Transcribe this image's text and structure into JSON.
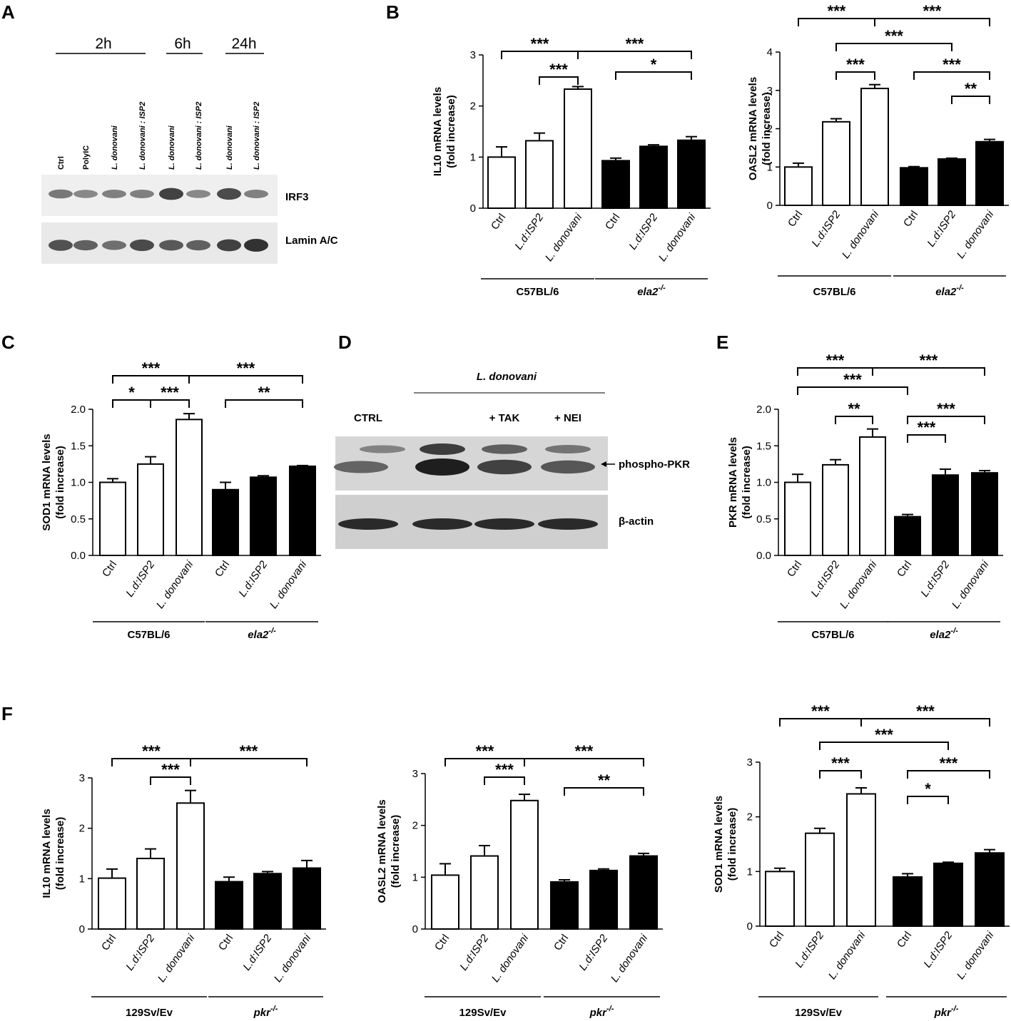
{
  "figure": {
    "panel_labels": [
      "A",
      "B",
      "C",
      "D",
      "E",
      "F"
    ]
  },
  "blot_a": {
    "time_groups": [
      "2h",
      "6h",
      "24h"
    ],
    "lanes": [
      "Ctrl",
      "PolyIC",
      "L. donovani",
      "L. donovani : ISP2",
      "L. donovani",
      "L. donovani : ISP2",
      "L. donovani",
      "L. donovani : ISP2"
    ],
    "rows": [
      "IRF3",
      "Lamin A/C"
    ],
    "band_intensity": {
      "IRF3": [
        0.55,
        0.45,
        0.5,
        0.5,
        0.9,
        0.45,
        0.85,
        0.5
      ],
      "Lamin A/C": [
        0.8,
        0.7,
        0.6,
        0.85,
        0.75,
        0.7,
        0.9,
        1.0
      ]
    }
  },
  "blot_d": {
    "header": "L. donovani",
    "lanes": [
      "CTRL",
      "",
      "+ TAK",
      "+ NEI"
    ],
    "rows": [
      "phospho-PKR",
      "β-actin"
    ],
    "band_intensity": {
      "phospho-PKR": [
        0.5,
        1.0,
        0.75,
        0.6
      ],
      "β-actin": [
        0.9,
        0.9,
        0.9,
        0.9
      ]
    }
  },
  "chart_data": [
    {
      "id": "B1",
      "panel": "B",
      "type": "bar",
      "categories": [
        "Ctrl",
        "L.d:ISP2",
        "L. donovani",
        "Ctrl",
        "L.d:ISP2",
        "L. donovani"
      ],
      "groups": [
        {
          "label": "C57BL/6",
          "from": 0,
          "to": 2
        },
        {
          "label": "ela2-/-",
          "from": 3,
          "to": 5
        }
      ],
      "values": [
        1.0,
        1.32,
        2.33,
        0.93,
        1.21,
        1.33
      ],
      "errors": [
        0.2,
        0.15,
        0.05,
        0.05,
        0.03,
        0.07
      ],
      "fills": [
        "white",
        "white",
        "white",
        "black",
        "black",
        "black"
      ],
      "ylabel": "IL10 mRNA levels (fold increase)",
      "ylim": [
        0,
        3
      ],
      "yticks": [
        "0",
        "1",
        "2",
        "3"
      ],
      "significance": [
        {
          "from": 0,
          "to": 2,
          "label": "***"
        },
        {
          "from": 1,
          "to": 2,
          "label": "***"
        },
        {
          "from": 2,
          "to": 5,
          "label": "***"
        },
        {
          "from": 3,
          "to": 5,
          "label": "*"
        }
      ]
    },
    {
      "id": "B2",
      "panel": "B",
      "type": "bar",
      "categories": [
        "Ctrl",
        "L.d:ISP2",
        "L. donovani",
        "Ctrl",
        "L.d:ISP2",
        "L. donovani"
      ],
      "groups": [
        {
          "label": "C57BL/6",
          "from": 0,
          "to": 2
        },
        {
          "label": "ela2-/-",
          "from": 3,
          "to": 5
        }
      ],
      "values": [
        1.0,
        2.18,
        3.05,
        0.98,
        1.21,
        1.66
      ],
      "errors": [
        0.1,
        0.08,
        0.1,
        0.03,
        0.02,
        0.06
      ],
      "fills": [
        "white",
        "white",
        "white",
        "black",
        "black",
        "black"
      ],
      "ylabel": "OASL2 mRNA levels (fold increase)",
      "ylim": [
        0,
        4
      ],
      "yticks": [
        "0",
        "1",
        "2",
        "3",
        "4"
      ],
      "significance": [
        {
          "from": 0,
          "to": 2,
          "label": "***"
        },
        {
          "from": 2,
          "to": 5,
          "label": "***"
        },
        {
          "from": 1,
          "to": 4,
          "label": "***"
        },
        {
          "from": 1,
          "to": 2,
          "label": "***"
        },
        {
          "from": 3,
          "to": 5,
          "label": "***"
        },
        {
          "from": 4,
          "to": 5,
          "label": "**"
        }
      ]
    },
    {
      "id": "C",
      "panel": "C",
      "type": "bar",
      "categories": [
        "Ctrl",
        "L.d:ISP2",
        "L. donovani",
        "Ctrl",
        "L.d:ISP2",
        "L. donovani"
      ],
      "groups": [
        {
          "label": "C57BL/6",
          "from": 0,
          "to": 2
        },
        {
          "label": "ela2-/-",
          "from": 3,
          "to": 5
        }
      ],
      "values": [
        1.0,
        1.25,
        1.86,
        0.9,
        1.07,
        1.22
      ],
      "errors": [
        0.05,
        0.1,
        0.08,
        0.1,
        0.02,
        0.01
      ],
      "fills": [
        "white",
        "white",
        "white",
        "black",
        "black",
        "black"
      ],
      "ylabel": "SOD1 mRNA levels (fold increase)",
      "ylim": [
        0,
        2
      ],
      "yticks": [
        "0.0",
        "0.5",
        "1.0",
        "1.5",
        "2.0"
      ],
      "significance": [
        {
          "from": 0,
          "to": 2,
          "label": "***"
        },
        {
          "from": 2,
          "to": 5,
          "label": "***"
        },
        {
          "from": 0,
          "to": 1,
          "label": "*"
        },
        {
          "from": 1,
          "to": 2,
          "label": "***"
        },
        {
          "from": 3,
          "to": 5,
          "label": "**"
        }
      ]
    },
    {
      "id": "E",
      "panel": "E",
      "type": "bar",
      "categories": [
        "Ctrl",
        "L.d:ISP2",
        "L. donovani",
        "Ctrl",
        "L.d:ISP2",
        "L. donovani"
      ],
      "groups": [
        {
          "label": "C57BL/6",
          "from": 0,
          "to": 2
        },
        {
          "label": "ela2-/-",
          "from": 3,
          "to": 5
        }
      ],
      "values": [
        1.0,
        1.24,
        1.62,
        0.53,
        1.1,
        1.13
      ],
      "errors": [
        0.11,
        0.07,
        0.11,
        0.03,
        0.08,
        0.03
      ],
      "fills": [
        "white",
        "white",
        "white",
        "black",
        "black",
        "black"
      ],
      "ylabel": "PKR mRNA levels (fold increase)",
      "ylim": [
        0,
        2
      ],
      "yticks": [
        "0.0",
        "0.5",
        "1.0",
        "1.5",
        "2.0"
      ],
      "significance": [
        {
          "from": 0,
          "to": 2,
          "label": "***"
        },
        {
          "from": 2,
          "to": 5,
          "label": "***"
        },
        {
          "from": 0,
          "to": 3,
          "label": "***"
        },
        {
          "from": 1,
          "to": 2,
          "label": "**"
        },
        {
          "from": 3,
          "to": 5,
          "label": "***"
        },
        {
          "from": 3,
          "to": 4,
          "label": "***"
        }
      ]
    },
    {
      "id": "F1",
      "panel": "F",
      "type": "bar",
      "categories": [
        "Ctrl",
        "L.d:ISP2",
        "L. donovani",
        "Ctrl",
        "L.d:ISP2",
        "L. donovani"
      ],
      "groups": [
        {
          "label": "129Sv/Ev",
          "from": 0,
          "to": 2
        },
        {
          "label": "pkr-/-",
          "from": 3,
          "to": 5
        }
      ],
      "values": [
        1.01,
        1.4,
        2.5,
        0.94,
        1.1,
        1.21
      ],
      "errors": [
        0.18,
        0.19,
        0.25,
        0.09,
        0.04,
        0.15
      ],
      "fills": [
        "white",
        "white",
        "white",
        "black",
        "black",
        "black"
      ],
      "ylabel": "IL10 mRNA levels (fold increase)",
      "ylim": [
        0,
        3
      ],
      "yticks": [
        "0",
        "1",
        "2",
        "3"
      ],
      "significance": [
        {
          "from": 0,
          "to": 2,
          "label": "***"
        },
        {
          "from": 2,
          "to": 5,
          "label": "***"
        },
        {
          "from": 1,
          "to": 2,
          "label": "***"
        }
      ]
    },
    {
      "id": "F2",
      "panel": "F",
      "type": "bar",
      "categories": [
        "Ctrl",
        "L.d:ISP2",
        "L. donovani",
        "Ctrl",
        "L.d:ISP2",
        "L. donovani"
      ],
      "groups": [
        {
          "label": "129Sv/Ev",
          "from": 0,
          "to": 2
        },
        {
          "label": "pkr-/-",
          "from": 3,
          "to": 5
        }
      ],
      "values": [
        1.04,
        1.41,
        2.48,
        0.91,
        1.13,
        1.41
      ],
      "errors": [
        0.22,
        0.2,
        0.12,
        0.04,
        0.03,
        0.05
      ],
      "fills": [
        "white",
        "white",
        "white",
        "black",
        "black",
        "black"
      ],
      "ylabel": "OASL2 mRNA levels (fold increase)",
      "ylim": [
        0,
        3
      ],
      "yticks": [
        "0",
        "1",
        "2",
        "3"
      ],
      "significance": [
        {
          "from": 0,
          "to": 2,
          "label": "***"
        },
        {
          "from": 2,
          "to": 5,
          "label": "***"
        },
        {
          "from": 1,
          "to": 2,
          "label": "***"
        },
        {
          "from": 3,
          "to": 5,
          "label": "**"
        }
      ]
    },
    {
      "id": "F3",
      "panel": "F",
      "type": "bar",
      "categories": [
        "Ctrl",
        "L.d:ISP2",
        "L. donovani",
        "Ctrl",
        "L.d:ISP2",
        "L. donovani"
      ],
      "groups": [
        {
          "label": "129Sv/Ev",
          "from": 0,
          "to": 2
        },
        {
          "label": "pkr-/-",
          "from": 3,
          "to": 5
        }
      ],
      "values": [
        1.0,
        1.7,
        2.42,
        0.9,
        1.15,
        1.34
      ],
      "errors": [
        0.06,
        0.09,
        0.11,
        0.06,
        0.02,
        0.06
      ],
      "fills": [
        "white",
        "white",
        "white",
        "black",
        "black",
        "black"
      ],
      "ylabel": "SOD1 mRNA levels (fold increase)",
      "ylim": [
        0,
        3
      ],
      "yticks": [
        "0",
        "1",
        "2",
        "3"
      ],
      "significance": [
        {
          "from": 0,
          "to": 2,
          "label": "***"
        },
        {
          "from": 2,
          "to": 5,
          "label": "***"
        },
        {
          "from": 1,
          "to": 4,
          "label": "***"
        },
        {
          "from": 1,
          "to": 2,
          "label": "***"
        },
        {
          "from": 3,
          "to": 5,
          "label": "***"
        },
        {
          "from": 3,
          "to": 4,
          "label": "*"
        }
      ]
    }
  ]
}
